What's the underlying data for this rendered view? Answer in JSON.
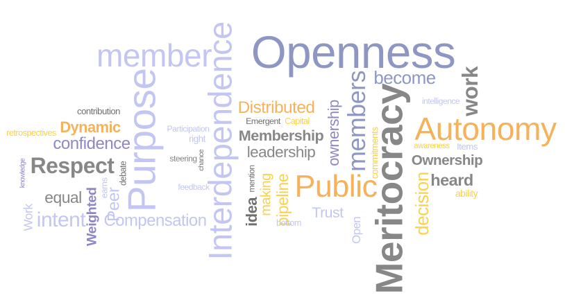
{
  "colors": {
    "slate": "#8e96c4",
    "lavender": "#c3c6f2",
    "orange": "#f6b25a",
    "gold": "#f8d24c",
    "gray": "#878787",
    "darkgray": "#6f6f6f",
    "lightgray": "#a8a8a8",
    "purple": "#8d88c4"
  },
  "words": [
    {
      "text": "Openness",
      "color": "slate"
    },
    {
      "text": "member",
      "color": "lavender"
    },
    {
      "text": "Purpose",
      "color": "lavender"
    },
    {
      "text": "Interdependence",
      "color": "lavender"
    },
    {
      "text": "Meritocracy",
      "color": "gray"
    },
    {
      "text": "Autonomy",
      "color": "orange"
    },
    {
      "text": "Public",
      "color": "orange"
    },
    {
      "text": "Respect",
      "color": "gray"
    },
    {
      "text": "members",
      "color": "slate"
    },
    {
      "text": "work",
      "color": "gray"
    },
    {
      "text": "become",
      "color": "slate"
    },
    {
      "text": "Distributed",
      "color": "orange"
    },
    {
      "text": "Membership",
      "color": "gray"
    },
    {
      "text": "leadership",
      "color": "gray"
    },
    {
      "text": "ownership",
      "color": "purple"
    },
    {
      "text": "Ownership",
      "color": "gray"
    },
    {
      "text": "heard",
      "color": "gray"
    },
    {
      "text": "decision",
      "color": "gold"
    },
    {
      "text": "pipeline",
      "color": "gold"
    },
    {
      "text": "making",
      "color": "gold"
    },
    {
      "text": "Trust",
      "color": "lavender"
    },
    {
      "text": "Open",
      "color": "lavender"
    },
    {
      "text": "confidence",
      "color": "purple"
    },
    {
      "text": "Dynamic",
      "color": "orange"
    },
    {
      "text": "equal",
      "color": "gray"
    },
    {
      "text": "Weighted",
      "color": "purple"
    },
    {
      "text": "Peer",
      "color": "lavender"
    },
    {
      "text": "intent",
      "color": "lavender"
    },
    {
      "text": "Compensation",
      "color": "lavender"
    },
    {
      "text": "Work",
      "color": "lavender"
    },
    {
      "text": "idea",
      "color": "darkgray"
    },
    {
      "text": "intelligence",
      "color": "lavender"
    },
    {
      "text": "awareness",
      "color": "gold"
    },
    {
      "text": "Items",
      "color": "lavender"
    },
    {
      "text": "ability",
      "color": "gold"
    },
    {
      "text": "commitments",
      "color": "gold"
    },
    {
      "text": "Emergent",
      "color": "darkgray"
    },
    {
      "text": "Capital",
      "color": "gold"
    },
    {
      "text": "contribution",
      "color": "darkgray"
    },
    {
      "text": "retrospectives",
      "color": "gold"
    },
    {
      "text": "knowledge",
      "color": "purple"
    },
    {
      "text": "earns",
      "color": "lavender"
    },
    {
      "text": "debate",
      "color": "darkgray"
    },
    {
      "text": "Participation",
      "color": "lavender"
    },
    {
      "text": "right",
      "color": "lavender"
    },
    {
      "text": "steering",
      "color": "gray"
    },
    {
      "text": "chance",
      "color": "darkgray"
    },
    {
      "text": "feedback",
      "color": "lavender"
    },
    {
      "text": "mention",
      "color": "darkgray"
    },
    {
      "text": "bottom",
      "color": "lavender"
    }
  ]
}
